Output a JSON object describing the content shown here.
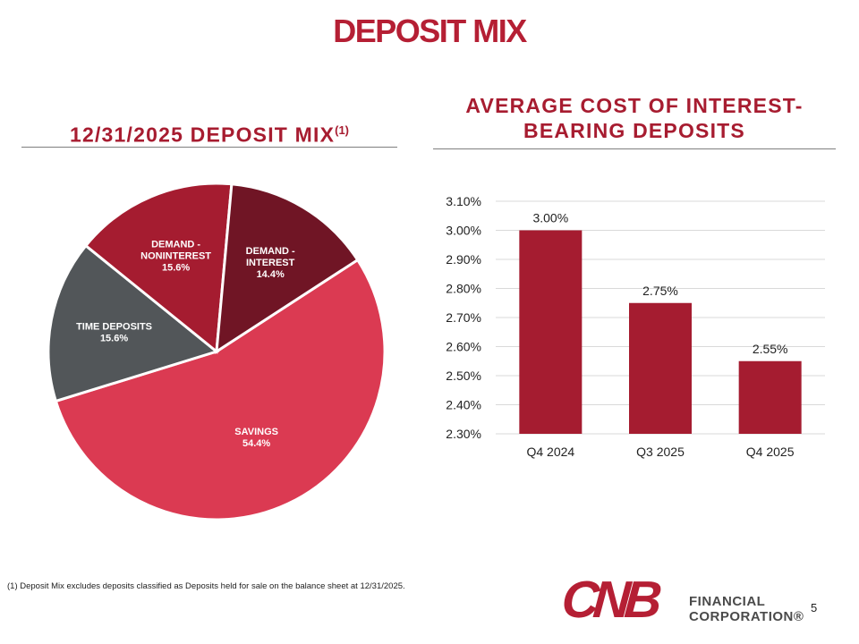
{
  "page": {
    "title": "DEPOSIT MIX",
    "footnote": "(1) Deposit Mix excludes deposits classified as Deposits held for sale on the balance sheet at 12/31/2025.",
    "page_number": "5",
    "logo": {
      "mark": "CNB",
      "line1": "FINANCIAL",
      "line2": "CORPORATION®"
    }
  },
  "colors": {
    "brand": "#b51f34",
    "savings": "#db3a52",
    "time_deposits": "#525659",
    "demand_noninterest": "#a51c30",
    "demand_interest": "#701525",
    "bar": "#a51c30"
  },
  "left_section": {
    "title": "12/31/2025 DEPOSIT MIX",
    "title_sup": "(1)"
  },
  "right_section": {
    "title_line1": "AVERAGE COST OF INTEREST-",
    "title_line2": "BEARING DEPOSITS"
  },
  "chart_data": [
    {
      "type": "pie",
      "title": "12/31/2025 DEPOSIT MIX(1)",
      "slices": [
        {
          "label_lines": [
            "SAVINGS",
            "54.4%"
          ],
          "value": 54.4,
          "color": "#db3a52"
        },
        {
          "label_lines": [
            "TIME DEPOSITS",
            "15.6%"
          ],
          "value": 15.6,
          "color": "#525659"
        },
        {
          "label_lines": [
            "DEMAND -",
            "NONINTEREST",
            "15.6%"
          ],
          "value": 15.6,
          "color": "#a51c30"
        },
        {
          "label_lines": [
            "DEMAND -",
            "INTEREST",
            "14.4%"
          ],
          "value": 14.4,
          "color": "#701525"
        }
      ]
    },
    {
      "type": "bar",
      "title": "AVERAGE COST OF INTEREST-BEARING DEPOSITS",
      "categories": [
        "Q4 2024",
        "Q3 2025",
        "Q4 2025"
      ],
      "values": [
        3.0,
        2.75,
        2.55
      ],
      "data_labels": [
        "3.00%",
        "2.75%",
        "2.55%"
      ],
      "yticks": [
        "2.30%",
        "2.40%",
        "2.50%",
        "2.60%",
        "2.70%",
        "2.80%",
        "2.90%",
        "3.00%",
        "3.10%"
      ],
      "ylim": [
        2.3,
        3.1
      ],
      "grid": true,
      "color": "#a51c30"
    }
  ]
}
